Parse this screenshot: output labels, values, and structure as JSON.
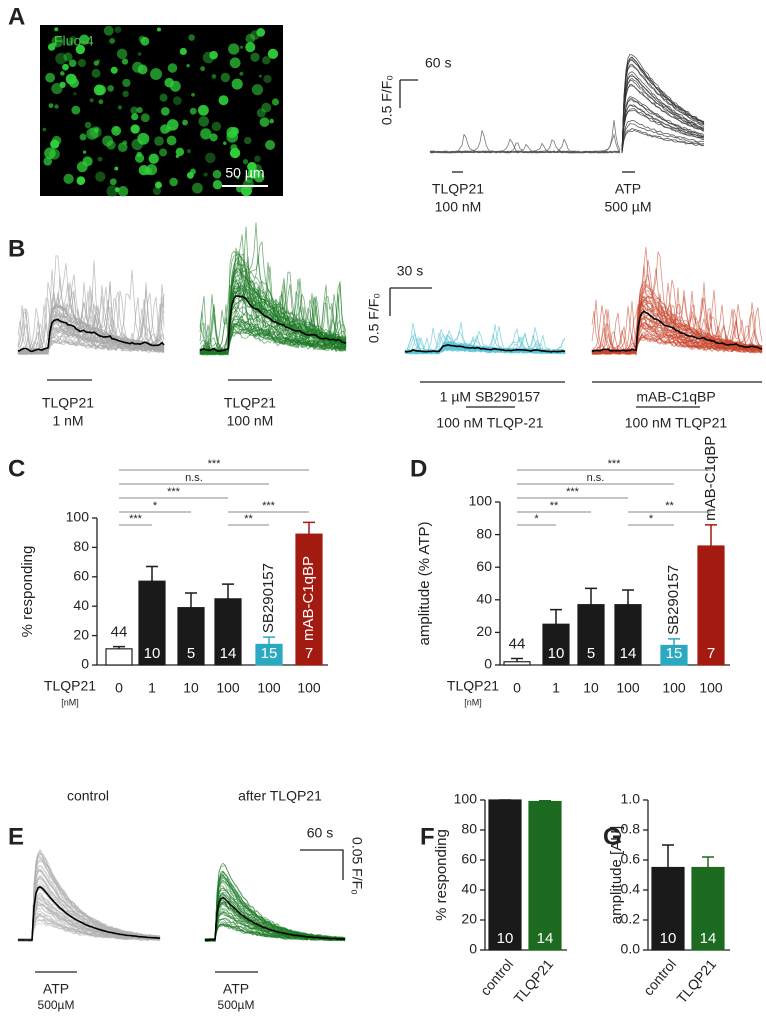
{
  "panels": {
    "a": {
      "label": "A",
      "image_label": "Fluo-4",
      "scale_label": "50 µm",
      "time_scale": "60 s",
      "amp_scale": "0.5 F/F₀",
      "stim1": "TLQP21",
      "stim1_conc": "100 nM",
      "stim2": "ATP",
      "stim2_conc": "500 µM"
    },
    "b": {
      "label": "B",
      "g1": "TLQP21",
      "g1_conc": "1 nM",
      "g2": "TLQP21",
      "g2_conc": "100 nM",
      "time_scale": "30 s",
      "amp_scale": "0.5 F/F₀",
      "g3_pre": "1 µM SB290157",
      "g3": "100 nM TLQP-21",
      "g4_pre": "mAB-C1qBP",
      "g4": "100 nM TLQP21"
    },
    "e": {
      "label": "E",
      "t1": "control",
      "t2": "after TLQP21",
      "stim1": "ATP",
      "stim1_conc": "500µM",
      "stim2": "ATP",
      "stim2_conc": "500µM",
      "time_scale": "60 s",
      "amp_scale": "0.05 F/F₀"
    }
  },
  "chart_data": [
    {
      "type": "bar",
      "label": "C",
      "ylabel": "% responding",
      "xlabel": "TLQP21",
      "xunit": "[nM]",
      "categories": [
        "0",
        "1",
        "10",
        "100",
        "100",
        "100"
      ],
      "values": [
        11,
        57,
        39,
        45,
        14,
        89
      ],
      "errors": [
        1.5,
        10,
        10,
        10,
        5,
        8
      ],
      "n": [
        44,
        10,
        5,
        14,
        15,
        7
      ],
      "bar_labels": [
        null,
        null,
        null,
        null,
        "SB290157",
        "mAB-C1qBP"
      ],
      "colors": [
        "#ffffff",
        "#1a1a1a",
        "#1a1a1a",
        "#1a1a1a",
        "#2aa9c0",
        "#a31a10"
      ],
      "ylim": [
        0,
        100
      ],
      "yticks": [
        0,
        20,
        40,
        60,
        80,
        100
      ],
      "brackets": [
        {
          "from": 0,
          "to": 5,
          "label": "***"
        },
        {
          "from": 0,
          "to": 4,
          "label": "n.s."
        },
        {
          "from": 0,
          "to": 3,
          "label": "***"
        },
        {
          "from": 0,
          "to": 2,
          "label": "*"
        },
        {
          "from": 0,
          "to": 1,
          "label": "***"
        },
        {
          "from": 3,
          "to": 5,
          "label": "***"
        },
        {
          "from": 3,
          "to": 4,
          "label": "**"
        }
      ]
    },
    {
      "type": "bar",
      "label": "D",
      "ylabel": "amplitude (% ATP)",
      "xlabel": "TLQP21",
      "xunit": "[nM]",
      "categories": [
        "0",
        "1",
        "10",
        "100",
        "100",
        "100"
      ],
      "values": [
        2,
        25,
        37,
        37,
        12,
        73
      ],
      "errors": [
        2,
        9,
        10,
        9,
        4,
        13
      ],
      "n": [
        44,
        10,
        5,
        14,
        15,
        7
      ],
      "bar_labels": [
        null,
        null,
        null,
        null,
        "SB290157",
        "mAB-C1qBP"
      ],
      "colors": [
        "#ffffff",
        "#1a1a1a",
        "#1a1a1a",
        "#1a1a1a",
        "#2aa9c0",
        "#a31a10"
      ],
      "ylim": [
        0,
        100
      ],
      "yticks": [
        0,
        20,
        40,
        60,
        80,
        100
      ],
      "brackets": [
        {
          "from": 0,
          "to": 5,
          "label": "***"
        },
        {
          "from": 0,
          "to": 4,
          "label": "n.s."
        },
        {
          "from": 0,
          "to": 3,
          "label": "***"
        },
        {
          "from": 0,
          "to": 2,
          "label": "**"
        },
        {
          "from": 0,
          "to": 1,
          "label": "*"
        },
        {
          "from": 3,
          "to": 5,
          "label": "**"
        },
        {
          "from": 3,
          "to": 4,
          "label": "*"
        }
      ]
    },
    {
      "type": "bar",
      "label": "F",
      "ylabel": "% responding",
      "categories": [
        "control",
        "TLQP21"
      ],
      "values": [
        100,
        99
      ],
      "errors": [
        0,
        0.5
      ],
      "n": [
        10,
        14
      ],
      "colors": [
        "#1a1a1a",
        "#1c6b20"
      ],
      "ylim": [
        0,
        100
      ],
      "yticks": [
        0,
        20,
        40,
        60,
        80,
        100
      ]
    },
    {
      "type": "bar",
      "label": "G",
      "ylabel": "amplitude [AU]",
      "categories": [
        "control",
        "TLQP21"
      ],
      "values": [
        0.55,
        0.55
      ],
      "errors": [
        0.15,
        0.07
      ],
      "n": [
        10,
        14
      ],
      "colors": [
        "#1a1a1a",
        "#1c6b20"
      ],
      "ylim": [
        0,
        1
      ],
      "yticks": [
        {
          "value": 0,
          "label": "0.0"
        },
        0.2,
        0.4,
        0.6,
        0.8,
        {
          "value": 1,
          "label": "1.0"
        }
      ]
    }
  ]
}
